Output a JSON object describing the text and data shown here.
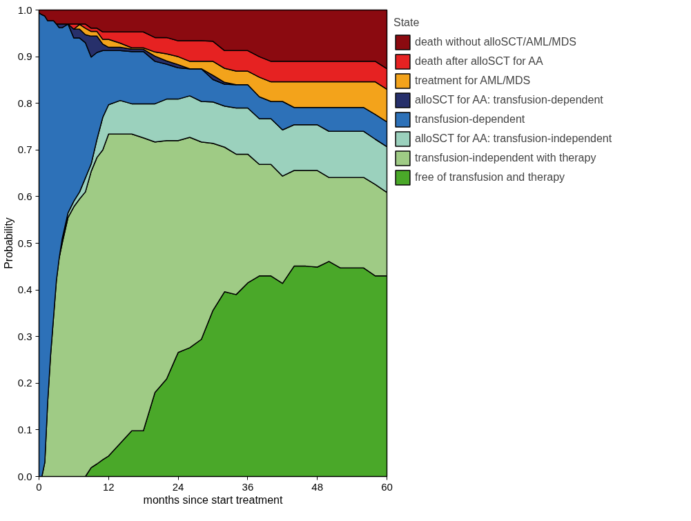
{
  "chart_data": {
    "type": "area",
    "stacked": true,
    "xlabel": "months since start treatment",
    "ylabel": "Probability",
    "legend_title": "State",
    "legend": "right",
    "grid": false,
    "xlim": [
      0,
      60
    ],
    "xticks": [
      0,
      12,
      24,
      36,
      48,
      60
    ],
    "ylim": [
      0,
      1
    ],
    "yticks": [
      {
        "value": 0,
        "label": "0.0"
      },
      0.1,
      0.2,
      0.3,
      0.4,
      0.5,
      0.6,
      0.7,
      0.8,
      0.9,
      {
        "value": 1,
        "label": "1.0"
      }
    ],
    "x": [
      0,
      0.5,
      1,
      1.5,
      2,
      2.5,
      3,
      3.5,
      4,
      5,
      6,
      7,
      8,
      9,
      10,
      11,
      12,
      14,
      16,
      18,
      20,
      22,
      24,
      26,
      28,
      30,
      32,
      34,
      36,
      38,
      40,
      42,
      44,
      46,
      48,
      50,
      52,
      54,
      56,
      58,
      60
    ],
    "series": [
      {
        "name": "free of transfusion and therapy",
        "color": "#4aa829",
        "values": [
          null,
          null,
          null,
          null,
          null,
          null,
          null,
          null,
          null,
          null,
          null,
          null,
          0,
          0.019,
          0.027,
          0.036,
          0.044,
          0.071,
          0.098,
          0.098,
          0.18,
          0.209,
          0.266,
          0.276,
          0.294,
          0.356,
          0.396,
          0.39,
          0.415,
          0.43,
          0.43,
          0.414,
          0.451,
          0.451,
          0.449,
          0.461,
          0.447,
          0.447,
          0.447,
          0.43,
          0.43
        ]
      },
      {
        "name": "transfusion-independent with therapy",
        "color": "#9fcb85",
        "values": [
          null,
          0,
          0.03,
          0.16,
          0.26,
          0.34,
          0.42,
          0.47,
          0.5,
          0.555,
          0.578,
          0.595,
          0.61,
          0.635,
          0.657,
          0.664,
          0.69,
          0.663,
          0.636,
          0.628,
          0.537,
          0.511,
          0.454,
          0.451,
          0.423,
          0.358,
          0.31,
          0.301,
          0.276,
          0.239,
          0.239,
          0.23,
          0.205,
          0.205,
          0.207,
          0.18,
          0.194,
          0.194,
          0.194,
          0.196,
          0.179
        ]
      },
      {
        "name": "alloSCT for AA: transfusion-independent",
        "color": "#9bd1bd",
        "values": [
          null,
          null,
          null,
          null,
          null,
          null,
          null,
          0,
          0.01,
          0.01,
          0.012,
          0.015,
          0.03,
          0.016,
          0.039,
          0.07,
          0.063,
          0.072,
          0.065,
          0.073,
          0.082,
          0.089,
          0.089,
          0.089,
          0.087,
          0.089,
          0.088,
          0.099,
          0.099,
          0.098,
          0.098,
          0.099,
          0.098,
          0.098,
          0.098,
          0.099,
          0.099,
          0.099,
          0.099,
          0.097,
          0.098
        ]
      },
      {
        "name": "transfusion-dependent",
        "color": "#2d71b8",
        "values": [
          0.994,
          0.99,
          0.957,
          0.817,
          0.717,
          0.637,
          0.55,
          0.492,
          0.452,
          0.405,
          0.35,
          0.33,
          0.29,
          0.229,
          0.186,
          0.143,
          0.116,
          0.107,
          0.112,
          0.112,
          0.091,
          0.075,
          0.067,
          0.058,
          0.07,
          0.048,
          0.047,
          0.05,
          0.05,
          0.047,
          0.037,
          0.061,
          0.037,
          0.037,
          0.037,
          0.051,
          0.051,
          0.051,
          0.051,
          0.053,
          0.053
        ]
      },
      {
        "name": "alloSCT for AA: transfusion-dependent",
        "color": "#27306b",
        "values": [
          null,
          null,
          null,
          null,
          null,
          null,
          0,
          0.008,
          0.008,
          0,
          0.019,
          0.019,
          0.017,
          0.045,
          0.035,
          0.014,
          0.007,
          0.007,
          0.005,
          0.005,
          0.011,
          0.007,
          0.007,
          0,
          0,
          0.009,
          0.004,
          0,
          null,
          null,
          null,
          null,
          null,
          null,
          null,
          null,
          null,
          null,
          null,
          null,
          null
        ]
      },
      {
        "name": "treatment for AML/MDS",
        "color": "#f3a31b",
        "values": [
          null,
          null,
          null,
          null,
          null,
          null,
          null,
          null,
          null,
          null,
          0,
          0.01,
          0.014,
          0.01,
          0.01,
          0.01,
          0.017,
          0.009,
          0.003,
          0.003,
          0.009,
          0.015,
          0.017,
          0.016,
          0.016,
          0.03,
          0.03,
          0.029,
          0.029,
          0.042,
          0.042,
          0.042,
          0.055,
          0.055,
          0.055,
          0.055,
          0.055,
          0.055,
          0.055,
          0.07,
          0.07
        ]
      },
      {
        "name": "death after alloSCT for AA",
        "color": "#e62222",
        "values": [
          null,
          null,
          null,
          null,
          null,
          null,
          null,
          null,
          null,
          0,
          0.011,
          0.001,
          0.009,
          0.007,
          0.007,
          0.016,
          0.016,
          0.024,
          0.034,
          0.034,
          0.031,
          0.035,
          0.034,
          0.044,
          0.044,
          0.043,
          0.038,
          0.044,
          0.044,
          0.044,
          0.044,
          0.044,
          0.044,
          0.044,
          0.044,
          0.044,
          0.044,
          0.044,
          0.044,
          0.044,
          0.044
        ]
      },
      {
        "name": "death without alloSCT/AML/MDS",
        "color": "#8b0a10",
        "values": [
          0.006,
          0.01,
          0.013,
          0.023,
          0.023,
          0.023,
          0.03,
          0.03,
          0.03,
          0.03,
          0.03,
          0.03,
          0.03,
          0.039,
          0.039,
          0.047,
          0.047,
          0.047,
          0.047,
          0.047,
          0.059,
          0.059,
          0.066,
          0.066,
          0.066,
          0.067,
          0.087,
          0.087,
          0.087,
          0.1,
          0.11,
          0.11,
          0.11,
          0.11,
          0.11,
          0.11,
          0.11,
          0.11,
          0.11,
          0.11,
          0.126
        ]
      }
    ]
  }
}
